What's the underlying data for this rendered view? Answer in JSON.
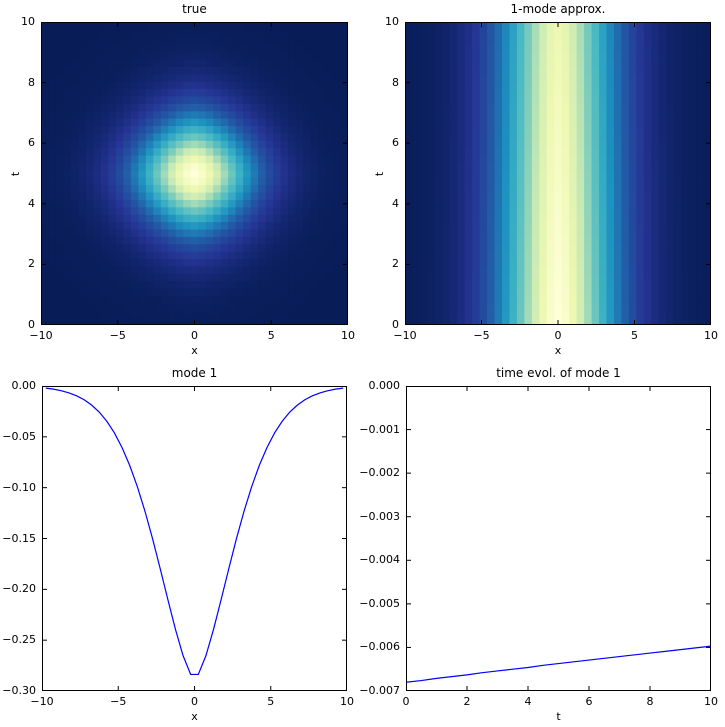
{
  "figure": {
    "background": "#ffffff",
    "axes_color": "#000000",
    "tick_color": "#000000"
  },
  "chart_data": [
    {
      "type": "heatmap",
      "title": "true",
      "xlabel": "x",
      "ylabel": "t",
      "xlim": [
        -10,
        10
      ],
      "ylim": [
        0,
        10
      ],
      "xticks": {
        "values": [
          -10,
          -5,
          0,
          5,
          10
        ],
        "labels": [
          "−10",
          "−5",
          "0",
          "5",
          "10"
        ]
      },
      "yticks": {
        "values": [
          0,
          2,
          4,
          6,
          8,
          10
        ],
        "labels": [
          "0",
          "2",
          "4",
          "6",
          "8",
          "10"
        ]
      },
      "grid": {
        "nx": 41,
        "nt": 41
      },
      "model": {
        "kind": "blob2d",
        "center_x": 0,
        "center_t": 5,
        "width_x": 3.6,
        "width_t": 1.8,
        "power": 1.6,
        "peak": 1.0
      },
      "colormap": {
        "name": "YlGnBu_r",
        "stops": [
          "#081d58",
          "#253494",
          "#225ea8",
          "#1d91c0",
          "#41b6c4",
          "#7fcdbb",
          "#c7e9b4",
          "#edf8b1",
          "#ffffd9"
        ]
      }
    },
    {
      "type": "heatmap",
      "title": "1-mode approx.",
      "xlabel": "x",
      "ylabel": "t",
      "xlim": [
        -10,
        10
      ],
      "ylim": [
        0,
        10
      ],
      "xticks": {
        "values": [
          -10,
          -5,
          0,
          5,
          10
        ],
        "labels": [
          "−10",
          "−5",
          "0",
          "5",
          "10"
        ]
      },
      "yticks": {
        "values": [
          0,
          2,
          4,
          6,
          8,
          10
        ],
        "labels": [
          "0",
          "2",
          "4",
          "6",
          "8",
          "10"
        ]
      },
      "grid": {
        "nx": 41,
        "nt": 41
      },
      "model": {
        "kind": "separable",
        "width_x": 3.6,
        "power": 1.6,
        "amp_at_t0": 1.0,
        "amp_at_t10": 0.878
      },
      "colormap": {
        "name": "YlGnBu_r",
        "stops": [
          "#081d58",
          "#253494",
          "#225ea8",
          "#1d91c0",
          "#41b6c4",
          "#7fcdbb",
          "#c7e9b4",
          "#edf8b1",
          "#ffffd9"
        ]
      }
    },
    {
      "type": "line",
      "title": "mode 1",
      "xlabel": "x",
      "ylabel": "",
      "xlim": [
        -10,
        10
      ],
      "ylim": [
        -0.3,
        0.0
      ],
      "xticks": {
        "values": [
          -10,
          -5,
          0,
          5,
          10
        ],
        "labels": [
          "−10",
          "−5",
          "0",
          "5",
          "10"
        ]
      },
      "yticks": {
        "values": [
          0,
          -0.05,
          -0.1,
          -0.15,
          -0.2,
          -0.25,
          -0.3
        ],
        "labels": [
          "0.00",
          "−0.05",
          "−0.10",
          "−0.15",
          "−0.20",
          "−0.25",
          "−0.30"
        ]
      },
      "line_color": "#0000ff",
      "x": [
        -9.75,
        -9.25,
        -8.75,
        -8.25,
        -7.75,
        -7.25,
        -6.75,
        -6.25,
        -5.75,
        -5.25,
        -4.75,
        -4.25,
        -3.75,
        -3.25,
        -2.75,
        -2.25,
        -1.75,
        -1.25,
        -0.75,
        -0.25,
        0.25,
        0.75,
        1.25,
        1.75,
        2.25,
        2.75,
        3.25,
        3.75,
        4.25,
        4.75,
        5.25,
        5.75,
        6.25,
        6.75,
        7.25,
        7.75,
        8.25,
        8.75,
        9.25,
        9.75
      ],
      "y": [
        -0.0021,
        -0.0031,
        -0.0046,
        -0.0067,
        -0.0095,
        -0.0134,
        -0.0187,
        -0.0256,
        -0.0347,
        -0.0462,
        -0.0606,
        -0.0781,
        -0.0989,
        -0.1231,
        -0.1502,
        -0.1796,
        -0.2099,
        -0.2393,
        -0.2652,
        -0.2837,
        -0.2837,
        -0.2652,
        -0.2393,
        -0.2099,
        -0.1796,
        -0.1502,
        -0.1231,
        -0.0989,
        -0.0781,
        -0.0606,
        -0.0462,
        -0.0347,
        -0.0256,
        -0.0187,
        -0.0134,
        -0.0095,
        -0.0067,
        -0.0046,
        -0.0031,
        -0.0021
      ]
    },
    {
      "type": "line",
      "title": "time evol. of mode 1",
      "xlabel": "t",
      "ylabel": "",
      "xlim": [
        0,
        10
      ],
      "ylim": [
        -0.007,
        0.0
      ],
      "xticks": {
        "values": [
          0,
          2,
          4,
          6,
          8,
          10
        ],
        "labels": [
          "0",
          "2",
          "4",
          "6",
          "8",
          "10"
        ]
      },
      "yticks": {
        "values": [
          0,
          -0.001,
          -0.002,
          -0.003,
          -0.004,
          -0.005,
          -0.006,
          -0.007
        ],
        "labels": [
          "0.000",
          "−0.001",
          "−0.002",
          "−0.003",
          "−0.004",
          "−0.005",
          "−0.006",
          "−0.007"
        ]
      },
      "line_color": "#0000ff",
      "x": [
        0,
        0.5,
        1,
        1.5,
        2,
        2.5,
        3,
        3.5,
        4,
        4.5,
        5,
        5.5,
        6,
        6.5,
        7,
        7.5,
        8,
        8.5,
        9,
        9.5,
        10
      ],
      "y": [
        -0.0068,
        -0.00676,
        -0.00671,
        -0.00667,
        -0.00663,
        -0.00658,
        -0.00654,
        -0.0065,
        -0.00646,
        -0.00641,
        -0.00637,
        -0.00633,
        -0.00629,
        -0.00625,
        -0.00621,
        -0.00617,
        -0.00613,
        -0.00609,
        -0.00605,
        -0.00601,
        -0.00597
      ]
    }
  ]
}
